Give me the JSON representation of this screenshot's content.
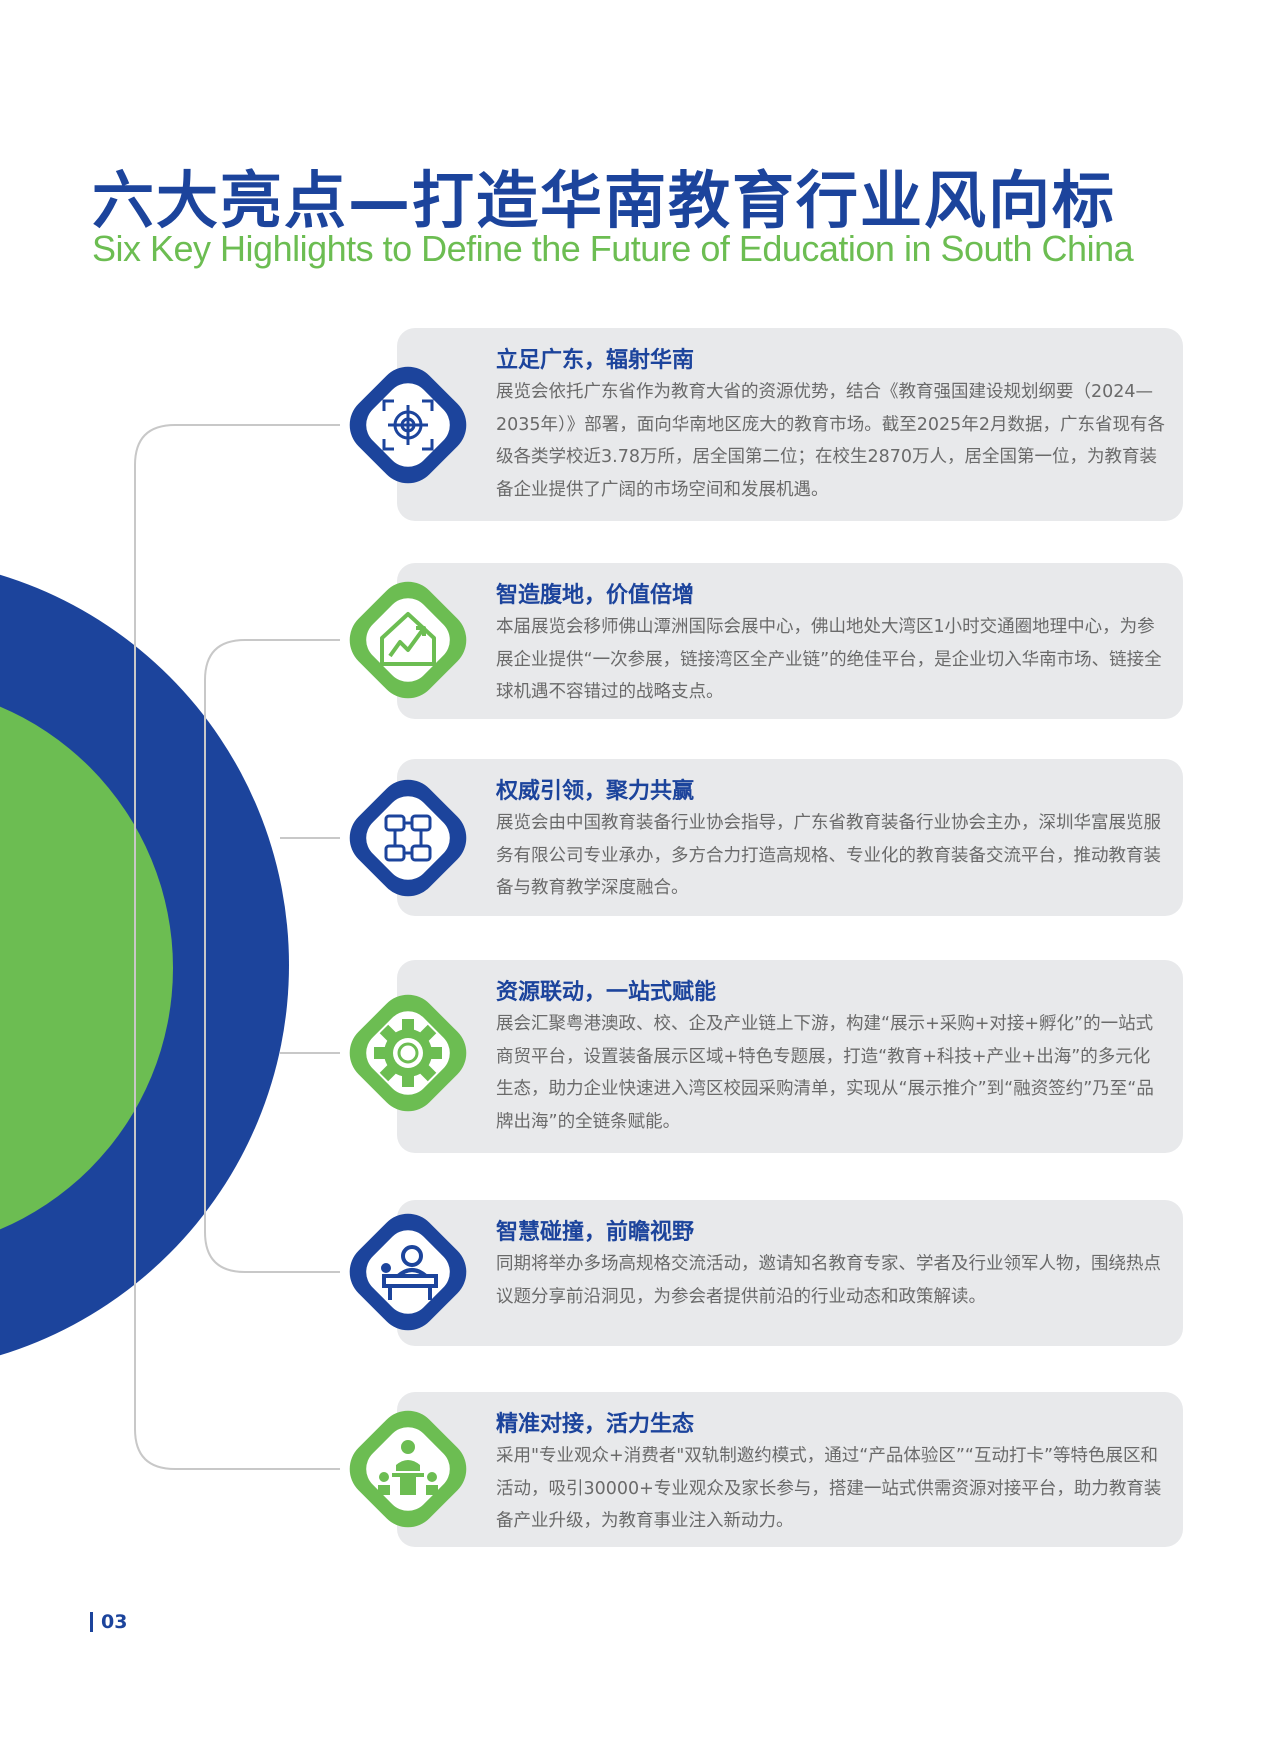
{
  "header": {
    "title": "六大亮点—打造华南教育行业风向标",
    "subtitle": "Six Key Highlights to Define the Future of Education in South China"
  },
  "colors": {
    "blue": "#1c449c",
    "green": "#6cbd52",
    "card": "#e8e9eb",
    "line": "#c8c8c8"
  },
  "highlights": [
    {
      "title": "立足广东，辐射华南",
      "icon": "target-icon",
      "color": "blue",
      "body": "展览会依托广东省作为教育大省的资源优势，结合《教育强国建设规划纲要（2024—2035年）》部署，面向华南地区庞大的教育市场。截至2025年2月数据，广东省现有各级各类学校近3.78万所，居全国第二位；在校生2870万人，居全国第一位，为教育装备企业提供了广阔的市场空间和发展机遇。"
    },
    {
      "title": "智造腹地，价值倍增",
      "icon": "house-growth-icon",
      "color": "green",
      "body": "本届展览会移师佛山潭洲国际会展中心，佛山地处大湾区1小时交通圈地理中心，为参展企业提供“一次参展，链接湾区全产业链”的绝佳平台，是企业切入华南市场、链接全球机遇不容错过的战略支点。"
    },
    {
      "title": "权威引领，聚力共赢",
      "icon": "hands-together-icon",
      "color": "blue",
      "body": "展览会由中国教育装备行业协会指导，广东省教育装备行业协会主办，深圳华富展览服务有限公司专业承办，多方合力打造高规格、专业化的教育装备交流平台，推动教育装备与教育教学深度融合。"
    },
    {
      "title": "资源联动，一站式赋能",
      "icon": "gear-icon",
      "color": "green",
      "body": "展会汇聚粤港澳政、校、企及产业链上下游，构建“展示+采购+对接+孵化”的一站式商贸平台，设置装备展示区域+特色专题展，打造“教育+科技+产业+出海”的多元化生态，助力企业快速进入湾区校园采购清单，实现从“展示推介”到“融资签约”乃至“品牌出海”的全链条赋能。"
    },
    {
      "title": "智慧碰撞，前瞻视野",
      "icon": "speaker-podium-icon",
      "color": "blue",
      "body": "同期将举办多场高规格交流活动，邀请知名教育专家、学者及行业领军人物，围绕热点议题分享前沿洞见，为参会者提供前沿的行业动态和政策解读。"
    },
    {
      "title": "精准对接，活力生态",
      "icon": "meeting-icon",
      "color": "green",
      "body": "采用\"专业观众+消费者\"双轨制邀约模式，通过“产品体验区”“互动打卡”等特色展区和活动，吸引30000+专业观众及家长参与，搭建一站式供需资源对接平台，助力教育装备产业升级，为教育事业注入新动力。"
    }
  ],
  "footer": {
    "page_number": "03"
  }
}
